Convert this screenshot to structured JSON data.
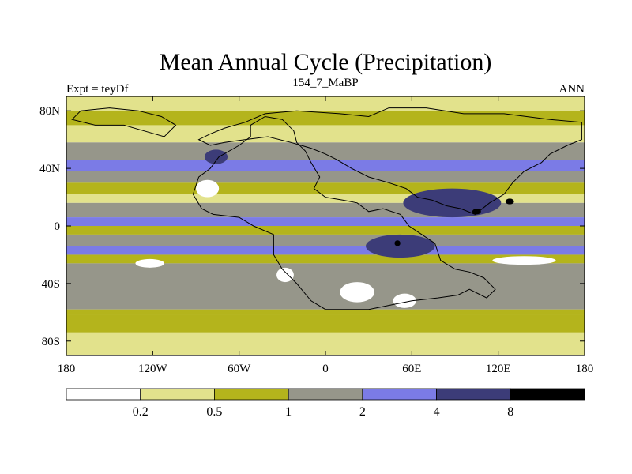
{
  "chart_data": {
    "type": "heatmap",
    "title": "Mean Annual Cycle (Precipitation)",
    "left_string": "Expt = teyDf",
    "center_string": "154_7_MaBP",
    "right_string": "ANN",
    "x_axis": {
      "range": [
        -180,
        180
      ],
      "ticks": [
        -180,
        -120,
        -60,
        0,
        60,
        120,
        180
      ],
      "tick_labels": [
        "180",
        "120W",
        "60W",
        "0",
        "60E",
        "120E",
        "180"
      ]
    },
    "y_axis": {
      "range": [
        -90,
        90
      ],
      "ticks": [
        80,
        40,
        0,
        -40,
        -80
      ],
      "tick_labels": [
        "80N",
        "40N",
        "0",
        "40S",
        "80S"
      ]
    },
    "colorbar": {
      "levels": [
        0.2,
        0.5,
        1,
        2,
        4,
        8
      ],
      "level_labels": [
        "0.2",
        "0.5",
        "1",
        "2",
        "4",
        "8"
      ],
      "colors": [
        "#ffffff",
        "#e2e28c",
        "#b4b41c",
        "#96968a",
        "#7b7be6",
        "#3c3c78",
        "#000000"
      ]
    },
    "bands": [
      {
        "lat_top": 90,
        "lat_bottom": 80,
        "class": 1
      },
      {
        "lat_top": 80,
        "lat_bottom": 70,
        "class": 2
      },
      {
        "lat_top": 70,
        "lat_bottom": 58,
        "class": 1
      },
      {
        "lat_top": 58,
        "lat_bottom": 46,
        "class": 3
      },
      {
        "lat_top": 46,
        "lat_bottom": 38,
        "class": 4
      },
      {
        "lat_top": 38,
        "lat_bottom": 30,
        "class": 3
      },
      {
        "lat_top": 30,
        "lat_bottom": 22,
        "class": 2
      },
      {
        "lat_top": 22,
        "lat_bottom": 16,
        "class": 1
      },
      {
        "lat_top": 16,
        "lat_bottom": 6,
        "class": 3
      },
      {
        "lat_top": 6,
        "lat_bottom": 0,
        "class": 4
      },
      {
        "lat_top": 0,
        "lat_bottom": -6,
        "class": 2
      },
      {
        "lat_top": -6,
        "lat_bottom": -14,
        "class": 3
      },
      {
        "lat_top": -14,
        "lat_bottom": -20,
        "class": 4
      },
      {
        "lat_top": -20,
        "lat_bottom": -26,
        "class": 2
      },
      {
        "lat_top": -26,
        "lat_bottom": -30,
        "class": 3
      },
      {
        "lat_top": -30,
        "lat_bottom": -58,
        "class": 3
      },
      {
        "lat_top": -58,
        "lat_bottom": -62,
        "class": 2
      },
      {
        "lat_top": -62,
        "lat_bottom": -74,
        "class": 2
      },
      {
        "lat_top": -74,
        "lat_bottom": -90,
        "class": 1
      }
    ],
    "regions": [
      {
        "name": "tropical-asia-max",
        "lon": 88,
        "lat": 16,
        "rx": 34,
        "ry": 10,
        "class": 5
      },
      {
        "name": "indian-ocean-max",
        "lon": 52,
        "lat": -14,
        "rx": 24,
        "ry": 8,
        "class": 5
      },
      {
        "name": "north-atlantic-max",
        "lon": -76,
        "lat": 48,
        "rx": 8,
        "ry": 5,
        "class": 5
      },
      {
        "name": "pacific-dry-tongue",
        "lon": 138,
        "lat": -24,
        "rx": 22,
        "ry": 3,
        "class": 0
      },
      {
        "name": "africa-dry",
        "lon": -82,
        "lat": 26,
        "rx": 8,
        "ry": 6,
        "class": 0
      },
      {
        "name": "east-pacific-dry",
        "lon": -122,
        "lat": -26,
        "rx": 10,
        "ry": 3,
        "class": 0
      },
      {
        "name": "southern-dry-1",
        "lon": -28,
        "lat": -34,
        "rx": 6,
        "ry": 5,
        "class": 0
      },
      {
        "name": "southern-dry-2",
        "lon": 22,
        "lat": -46,
        "rx": 12,
        "ry": 7,
        "class": 0
      },
      {
        "name": "southern-dry-3",
        "lon": 55,
        "lat": -52,
        "rx": 8,
        "ry": 5,
        "class": 0
      },
      {
        "name": "core-1",
        "lon": 105,
        "lat": 10,
        "rx": 3,
        "ry": 2,
        "class": 6
      },
      {
        "name": "core-2",
        "lon": 128,
        "lat": 17,
        "rx": 3,
        "ry": 2,
        "class": 6
      },
      {
        "name": "core-3",
        "lon": 50,
        "lat": -12,
        "rx": 2,
        "ry": 2,
        "class": 6
      }
    ],
    "continent_outlines": [
      [
        [
          -52,
          70
        ],
        [
          -52,
          62
        ],
        [
          -60,
          56
        ],
        [
          -74,
          48
        ],
        [
          -80,
          40
        ],
        [
          -88,
          34
        ],
        [
          -92,
          22
        ],
        [
          -86,
          12
        ],
        [
          -78,
          8
        ],
        [
          -60,
          6
        ],
        [
          -50,
          0
        ],
        [
          -36,
          -6
        ],
        [
          -36,
          -20
        ],
        [
          -30,
          -30
        ],
        [
          -20,
          -40
        ],
        [
          -10,
          -52
        ],
        [
          0,
          -58
        ],
        [
          30,
          -58
        ],
        [
          50,
          -54
        ],
        [
          60,
          -52
        ],
        [
          78,
          -50
        ],
        [
          92,
          -48
        ],
        [
          100,
          -44
        ],
        [
          112,
          -50
        ],
        [
          118,
          -44
        ],
        [
          110,
          -36
        ],
        [
          100,
          -32
        ],
        [
          90,
          -30
        ],
        [
          80,
          -24
        ],
        [
          76,
          -12
        ],
        [
          64,
          -4
        ],
        [
          58,
          0
        ],
        [
          52,
          8
        ],
        [
          40,
          12
        ],
        [
          30,
          10
        ],
        [
          22,
          16
        ],
        [
          12,
          18
        ],
        [
          0,
          20
        ],
        [
          -8,
          26
        ],
        [
          -4,
          34
        ],
        [
          -10,
          44
        ],
        [
          -14,
          52
        ],
        [
          -20,
          58
        ],
        [
          -22,
          66
        ],
        [
          -30,
          74
        ],
        [
          -42,
          76
        ],
        [
          -52,
          70
        ]
      ],
      [
        [
          -88,
          60
        ],
        [
          -80,
          64
        ],
        [
          -70,
          68
        ],
        [
          -56,
          72
        ],
        [
          -42,
          78
        ],
        [
          -20,
          80
        ],
        [
          10,
          78
        ],
        [
          30,
          76
        ],
        [
          44,
          82
        ],
        [
          70,
          82
        ],
        [
          96,
          78
        ],
        [
          124,
          78
        ],
        [
          156,
          74
        ],
        [
          178,
          72
        ],
        [
          178,
          60
        ],
        [
          168,
          56
        ],
        [
          156,
          50
        ],
        [
          150,
          44
        ],
        [
          138,
          38
        ],
        [
          130,
          30
        ],
        [
          124,
          22
        ],
        [
          114,
          16
        ],
        [
          104,
          8
        ],
        [
          94,
          12
        ],
        [
          84,
          14
        ],
        [
          74,
          18
        ],
        [
          64,
          20
        ],
        [
          56,
          26
        ],
        [
          44,
          30
        ],
        [
          30,
          34
        ],
        [
          18,
          40
        ],
        [
          8,
          46
        ],
        [
          0,
          50
        ],
        [
          -10,
          54
        ],
        [
          -24,
          58
        ],
        [
          -40,
          62
        ],
        [
          -56,
          60
        ],
        [
          -70,
          58
        ],
        [
          -80,
          56
        ],
        [
          -88,
          60
        ]
      ],
      [
        [
          -170,
          80
        ],
        [
          -150,
          82
        ],
        [
          -130,
          80
        ],
        [
          -114,
          76
        ],
        [
          -104,
          70
        ],
        [
          -112,
          62
        ],
        [
          -126,
          66
        ],
        [
          -140,
          70
        ],
        [
          -160,
          70
        ],
        [
          -176,
          74
        ],
        [
          -170,
          80
        ]
      ]
    ]
  }
}
